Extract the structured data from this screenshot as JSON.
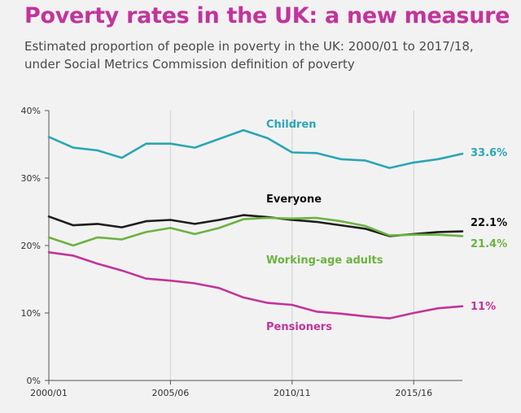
{
  "chart_data": {
    "type": "line",
    "title": "Poverty rates in the UK: a new measure",
    "subtitle_lines": [
      "Estimated proportion of people in poverty in the UK: 2000/01 to 2017/18,",
      "under Social Metrics Commission definition of poverty"
    ],
    "x": [
      "2000/01",
      "2001/02",
      "2002/03",
      "2003/04",
      "2004/05",
      "2005/06",
      "2006/07",
      "2007/08",
      "2008/09",
      "2009/10",
      "2010/11",
      "2011/12",
      "2012/13",
      "2013/14",
      "2014/15",
      "2015/16",
      "2016/17",
      "2017/18"
    ],
    "x_tick_labels": [
      "2000/01",
      "2005/06",
      "2010/11",
      "2015/16"
    ],
    "x_tick_indices": [
      0,
      5,
      10,
      15
    ],
    "y_ticks": [
      "0%",
      "10%",
      "20%",
      "30%",
      "40%"
    ],
    "y_tick_values": [
      0,
      10,
      20,
      30,
      40
    ],
    "ylim": [
      0,
      40
    ],
    "grid": "vertical",
    "series": [
      {
        "name": "Children",
        "color": "#2aa6b5",
        "end_label": "33.6%",
        "values": [
          36.1,
          34.5,
          34.1,
          33.0,
          35.1,
          35.1,
          34.5,
          35.8,
          37.1,
          35.9,
          33.8,
          33.7,
          32.8,
          32.6,
          31.5,
          32.3,
          32.8,
          33.6
        ]
      },
      {
        "name": "Everyone",
        "color": "#1e1e1e",
        "end_label": "22.1%",
        "values": [
          24.3,
          23.0,
          23.2,
          22.7,
          23.6,
          23.8,
          23.2,
          23.8,
          24.5,
          24.2,
          23.8,
          23.5,
          23.0,
          22.5,
          21.4,
          21.7,
          22.0,
          22.1
        ]
      },
      {
        "name": "Working-age adults",
        "color": "#6cb33f",
        "end_label": "21.4%",
        "values": [
          21.2,
          20.0,
          21.2,
          20.9,
          22.0,
          22.6,
          21.7,
          22.6,
          23.9,
          24.1,
          24.0,
          24.1,
          23.6,
          22.9,
          21.5,
          21.6,
          21.6,
          21.4
        ]
      },
      {
        "name": "Pensioners",
        "color": "#c2349b",
        "end_label": "11%",
        "values": [
          19.0,
          18.5,
          17.3,
          16.3,
          15.1,
          14.8,
          14.4,
          13.7,
          12.3,
          11.5,
          11.2,
          10.2,
          9.9,
          9.5,
          9.2,
          10.0,
          10.7,
          11.0
        ]
      }
    ]
  }
}
